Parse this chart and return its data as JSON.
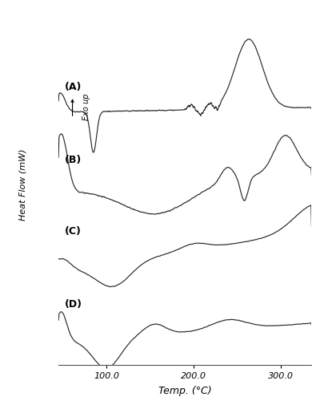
{
  "xlabel": "Temp. (°C)",
  "ylabel": "Heat Flow (mW)",
  "exo_label": "Exo up",
  "x_ticks": [
    100.0,
    200.0,
    300.0
  ],
  "x_tick_labels": [
    "100.0",
    "200.0",
    "300.0"
  ],
  "x_range": [
    45,
    335
  ],
  "background_color": "#ffffff",
  "line_color": "#2a2a2a",
  "label_A": "(A)",
  "label_B": "(B)",
  "label_C": "(C)",
  "label_D": "(D)"
}
